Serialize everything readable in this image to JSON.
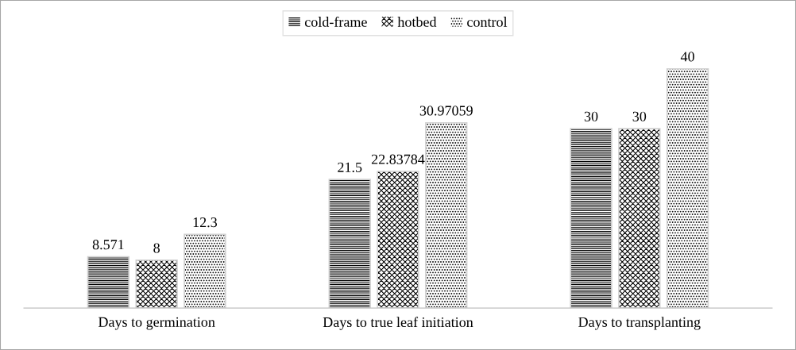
{
  "chart_data": {
    "type": "bar",
    "categories": [
      "Days to germination",
      "Days to true leaf initiation",
      "Days to transplanting"
    ],
    "series": [
      {
        "name": "cold-frame",
        "color": "#000000",
        "values": [
          8.571,
          21.5,
          30
        ]
      },
      {
        "name": "hotbed",
        "color": "#000000",
        "values": [
          8,
          22.83784,
          30
        ]
      },
      {
        "name": "control",
        "color": "#000000",
        "values": [
          12.3,
          30.97059,
          40
        ]
      }
    ],
    "data_labels": true,
    "legend": "top",
    "grid": false,
    "tick_labels": "x"
  }
}
